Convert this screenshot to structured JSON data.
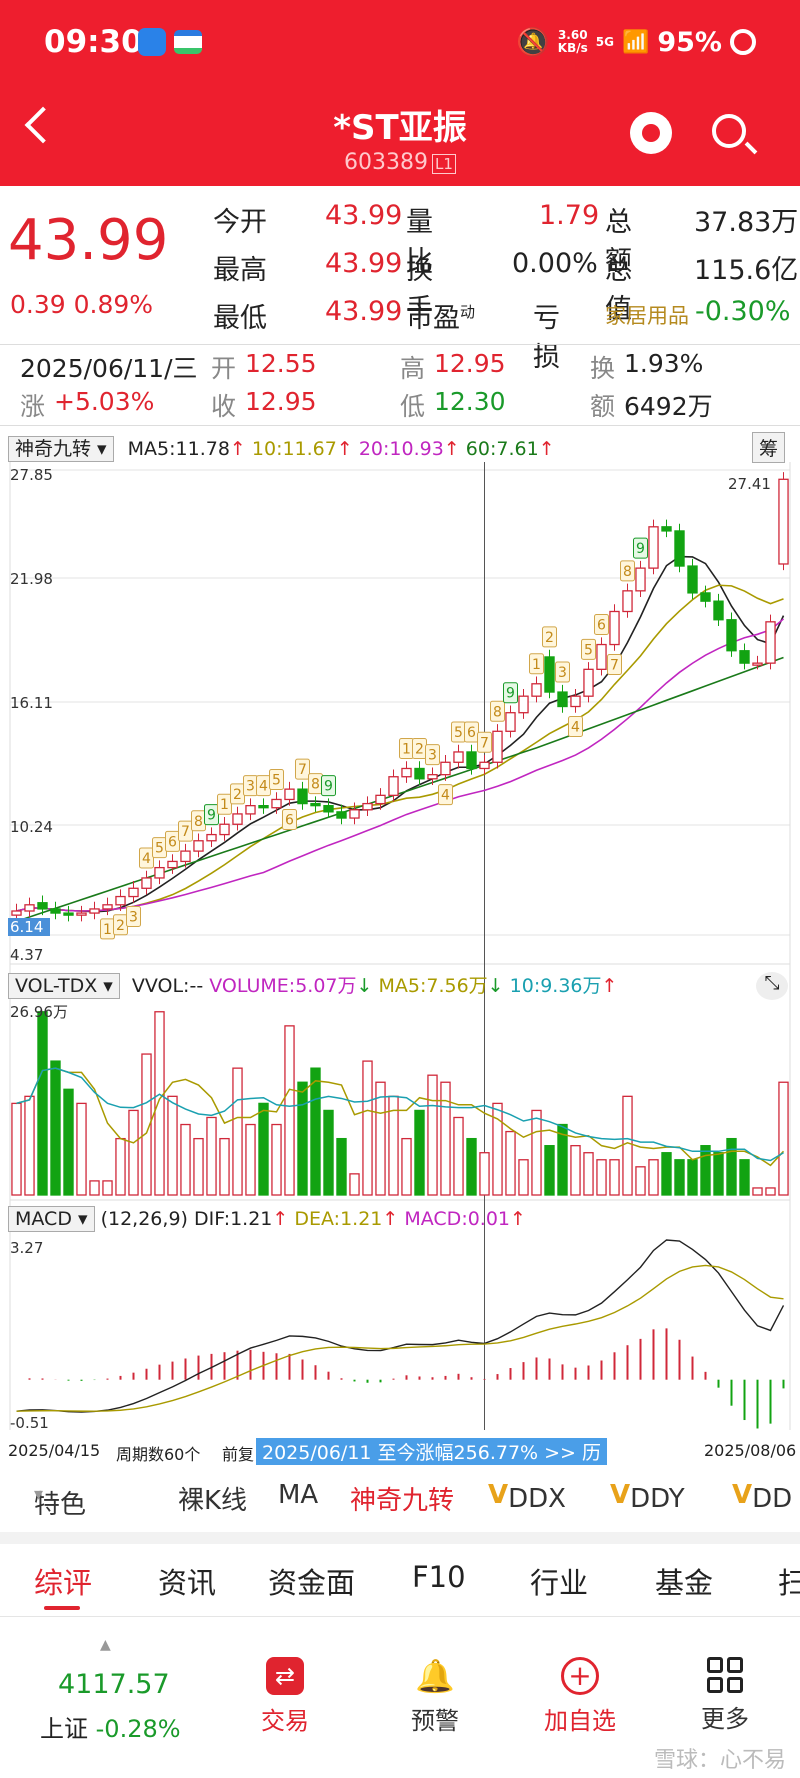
{
  "status": {
    "time": "09:30",
    "net_speed": "3.60",
    "net_unit": "KB/s",
    "net_type": "5G",
    "battery": "95%"
  },
  "header": {
    "title": "*ST亚振",
    "code": "603389",
    "level": "L1"
  },
  "quote": {
    "price": "43.99",
    "change": "0.39",
    "change_pct": "0.89%",
    "rows": [
      {
        "l1": "今开",
        "v1": "43.99",
        "l2": "量比",
        "v2": "1.79",
        "l3": "总额",
        "v3": "37.83万"
      },
      {
        "l1": "最高",
        "v1": "43.99",
        "l2": "换手",
        "v2": "0.00%",
        "l3": "总值",
        "v3": "115.6亿"
      },
      {
        "l1": "最低",
        "v1": "43.99",
        "l2": "市盈",
        "v2": "亏损",
        "l3": "家居用品",
        "v3": "-0.30%"
      }
    ],
    "pe_sup": "动"
  },
  "info": {
    "date": "2025/06/11/三",
    "open_l": "开",
    "open": "12.55",
    "high_l": "高",
    "high": "12.95",
    "turn_l": "换",
    "turn": "1.93%",
    "rise_l": "涨",
    "rise": "+5.03%",
    "close_l": "收",
    "close": "12.95",
    "low_l": "低",
    "low": "12.30",
    "amt_l": "额",
    "amt": "6492万"
  },
  "kline": {
    "indicator": "神奇九转",
    "ma5": "MA5:11.78",
    "ma10": "10:11.67",
    "ma20": "20:10.93",
    "ma60": "60:7.61",
    "chips": "筹",
    "y_labels": [
      "27.85",
      "21.98",
      "16.11",
      "10.24",
      "4.37"
    ],
    "max_label": "27.41",
    "cur_label": "6.14"
  },
  "vol": {
    "indicator": "VOL-TDX",
    "vvol": "VVOL:--",
    "volume": "VOLUME:5.07万",
    "ma5": "MA5:7.56万",
    "ma10": "10:9.36万",
    "max": "26.96万"
  },
  "macd": {
    "indicator": "MACD",
    "params": "(12,26,9)",
    "dif": "DIF:1.21",
    "dea": "DEA:1.21",
    "macd": "MACD:0.01",
    "max": "3.27",
    "min": "-0.51",
    "date_start": "2025/04/15",
    "period": "周期数60个",
    "fq": "前复",
    "banner": "2025/06/11 至今涨幅256.77% >> 历",
    "date_end": "2025/08/06"
  },
  "tabs1": [
    "特色",
    "裸K线",
    "MA",
    "神奇九转",
    "DDX",
    "DDY",
    "DD"
  ],
  "tabs2": [
    "综评",
    "资讯",
    "资金面",
    "F10",
    "行业",
    "基金",
    "扫"
  ],
  "bottom": {
    "index_value": "4117.57",
    "index_name": "上证",
    "index_change": "-0.28%",
    "trade": "交易",
    "alert": "预警",
    "watch": "加自选",
    "more": "更多",
    "watermark": "雪球：心不易"
  },
  "colors": {
    "brand_red": "#ee1e2e",
    "up": "#e0242f",
    "down": "#1a9a2a"
  },
  "chart_data": {
    "type": "candlestick",
    "o": [
      6.3,
      6.5,
      6.9,
      6.6,
      6.4,
      6.3,
      6.4,
      6.6,
      6.8,
      7.2,
      7.6,
      8.1,
      8.6,
      8.9,
      9.4,
      9.9,
      10.2,
      10.7,
      11.2,
      11.6,
      11.5,
      11.9,
      12.4,
      11.7,
      11.6,
      11.3,
      11.0,
      11.4,
      11.7,
      12.1,
      13.0,
      13.4,
      12.9,
      13.1,
      13.7,
      14.2,
      13.4,
      13.7,
      15.2,
      16.1,
      16.9,
      18.8,
      17.1,
      16.4,
      16.9,
      18.2,
      19.4,
      21.0,
      22.0,
      23.1,
      25.1,
      24.9,
      23.2,
      21.9,
      21.5,
      20.6,
      19.1,
      18.5,
      18.5,
      23.3
    ],
    "c": [
      6.5,
      6.8,
      6.6,
      6.4,
      6.3,
      6.4,
      6.6,
      6.8,
      7.2,
      7.6,
      8.1,
      8.6,
      8.9,
      9.4,
      9.9,
      10.2,
      10.7,
      11.2,
      11.6,
      11.5,
      11.9,
      12.4,
      11.7,
      11.6,
      11.3,
      11.0,
      11.4,
      11.7,
      12.1,
      13.0,
      13.4,
      12.9,
      13.1,
      13.7,
      14.2,
      13.4,
      13.7,
      15.2,
      16.1,
      16.9,
      17.5,
      17.1,
      16.4,
      16.9,
      18.2,
      19.4,
      21.0,
      22.0,
      23.1,
      25.1,
      24.9,
      23.2,
      21.9,
      21.5,
      20.6,
      19.1,
      18.5,
      18.5,
      20.5,
      27.4
    ],
    "vol": [
      13,
      14,
      26,
      19,
      15,
      13,
      2,
      2,
      8,
      12,
      20,
      26,
      14,
      10,
      8,
      11,
      8,
      18,
      10,
      13,
      10,
      24,
      16,
      18,
      12,
      8,
      3,
      19,
      16,
      14,
      8,
      12,
      17,
      16,
      11,
      8,
      6,
      13,
      9,
      5,
      12,
      7,
      10,
      7,
      6,
      5,
      5,
      14,
      4,
      5,
      6,
      5,
      5,
      7,
      6,
      8,
      5,
      1,
      1,
      16
    ],
    "up": [
      1,
      1,
      0,
      0,
      0,
      1,
      1,
      1,
      1,
      1,
      1,
      1,
      1,
      1,
      1,
      1,
      1,
      1,
      1,
      0,
      1,
      1,
      0,
      0,
      0,
      0,
      1,
      1,
      1,
      1,
      1,
      0,
      1,
      1,
      1,
      0,
      1,
      1,
      1,
      1,
      1,
      0,
      0,
      1,
      1,
      1,
      1,
      1,
      1,
      1,
      0,
      0,
      0,
      0,
      0,
      0,
      0,
      1,
      1,
      1
    ],
    "macd_x": [
      0,
      59
    ],
    "dif_range": [
      -0.51,
      3.27
    ],
    "x_labels": [
      "2025/04/15",
      "2025/08/06"
    ]
  }
}
